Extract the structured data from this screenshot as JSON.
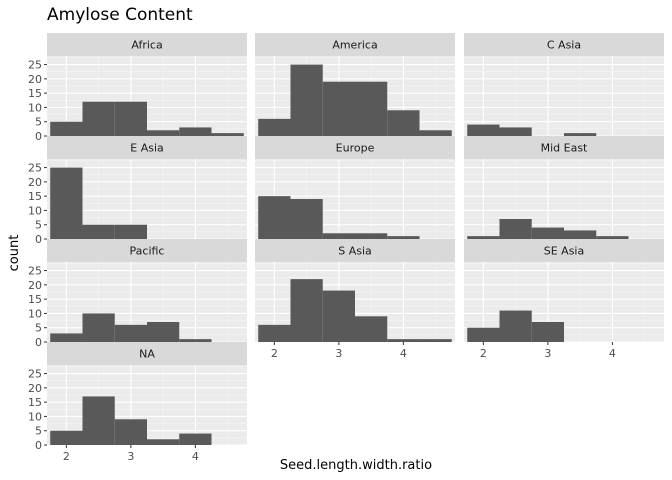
{
  "chart_data": {
    "type": "bar",
    "subtype": "faceted-histogram",
    "title": "Amylose Content",
    "xlabel": "Seed.length.width.ratio",
    "ylabel": "count",
    "xlim": [
      1.7,
      4.8
    ],
    "ylim": [
      0,
      28
    ],
    "x_ticks": [
      2,
      3,
      4
    ],
    "y_ticks": [
      0,
      5,
      10,
      15,
      20,
      25
    ],
    "bin_width": 0.5,
    "bin_centers": [
      2,
      2.5,
      3,
      3.5,
      4,
      4.5
    ],
    "colors": {
      "bar": "#595959",
      "panel_bg": "#ebebeb",
      "grid_major": "#ffffff",
      "grid_minor": "#f5f5f5",
      "strip_bg": "#d9d9d9"
    },
    "facets": [
      {
        "label": "Africa",
        "counts": [
          5,
          12,
          12,
          2,
          3,
          1
        ]
      },
      {
        "label": "America",
        "counts": [
          6,
          25,
          19,
          19,
          9,
          2
        ]
      },
      {
        "label": "C Asia",
        "counts": [
          4,
          3,
          0,
          1,
          0,
          0
        ]
      },
      {
        "label": "E Asia",
        "counts": [
          25,
          5,
          5,
          0,
          0,
          0
        ]
      },
      {
        "label": "Europe",
        "counts": [
          15,
          14,
          2,
          2,
          1,
          0
        ]
      },
      {
        "label": "Mid East",
        "counts": [
          1,
          7,
          4,
          3,
          1,
          0
        ]
      },
      {
        "label": "Pacific",
        "counts": [
          3,
          10,
          6,
          7,
          1,
          0
        ]
      },
      {
        "label": "S Asia",
        "counts": [
          6,
          22,
          18,
          9,
          1,
          1
        ]
      },
      {
        "label": "SE Asia",
        "counts": [
          5,
          11,
          7,
          0,
          0,
          0
        ]
      },
      {
        "label": "NA",
        "counts": [
          5,
          17,
          9,
          2,
          4,
          0
        ]
      }
    ]
  }
}
